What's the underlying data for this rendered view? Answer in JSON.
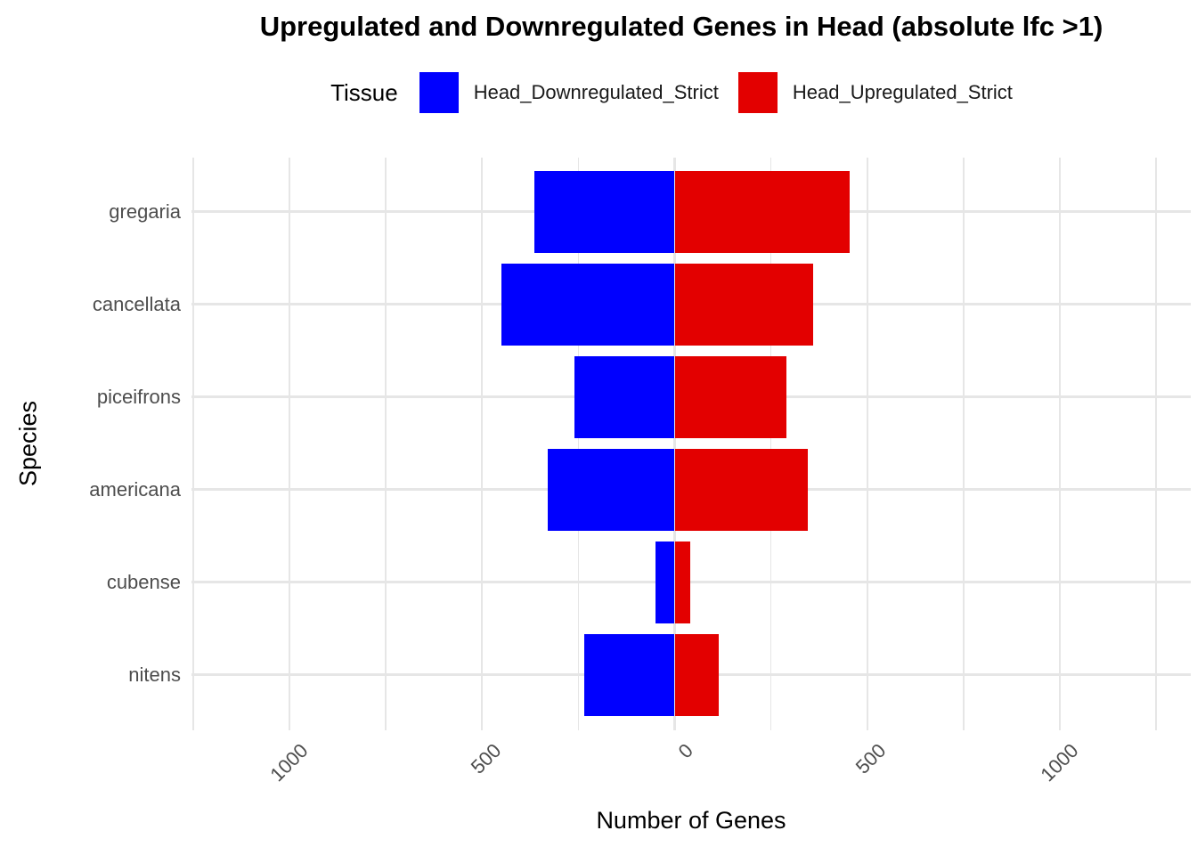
{
  "title": "Upregulated and Downregulated Genes in Head (absolute lfc >1)",
  "legend": {
    "title": "Tissue",
    "items": [
      {
        "label": "Head_Downregulated_Strict",
        "color": "#0000ff"
      },
      {
        "label": "Head_Upregulated_Strict",
        "color": "#e30000"
      }
    ]
  },
  "chart_data": {
    "type": "bar",
    "variant": "horizontal-diverging",
    "title": "Upregulated and Downregulated Genes in Head (absolute lfc >1)",
    "xlabel": "Number of Genes",
    "ylabel": "Species",
    "categories": [
      "gregaria",
      "cancellata",
      "piceifrons",
      "americana",
      "cubense",
      "nitens"
    ],
    "series": [
      {
        "name": "Head_Downregulated_Strict",
        "direction": "negative",
        "color": "#0000ff",
        "values": [
          365,
          450,
          260,
          330,
          50,
          235
        ]
      },
      {
        "name": "Head_Upregulated_Strict",
        "direction": "positive",
        "color": "#e30000",
        "values": [
          455,
          360,
          290,
          345,
          40,
          115
        ]
      }
    ],
    "xlim": [
      -1250,
      1250
    ],
    "x_gridline_step": 250,
    "x_major_ticks": [
      -1000,
      -500,
      0,
      500,
      1000
    ],
    "x_tick_labels": [
      "1000",
      "500",
      "0",
      "500",
      "1000"
    ],
    "grid": true,
    "legend_position": "top",
    "colors": {
      "downregulated": "#0000ff",
      "upregulated": "#e30000",
      "gridline": "#e6e6e6",
      "tick_label": "#4d4d4d",
      "text": "#000000",
      "background": "#ffffff"
    }
  }
}
